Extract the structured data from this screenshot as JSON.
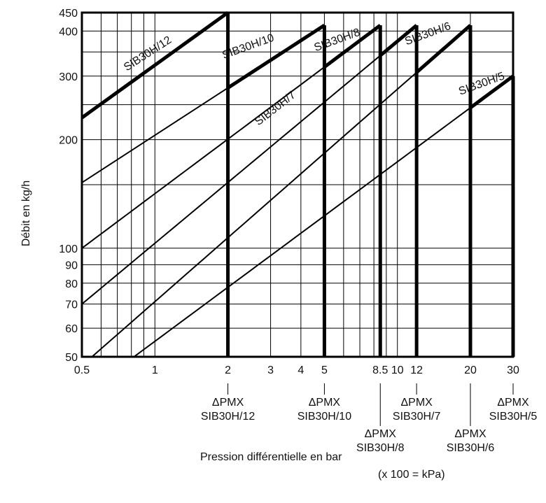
{
  "chart_data": {
    "type": "line",
    "title": "",
    "xlabel": "Pression différentielle en bar",
    "xunit": "(x 100 = kPa)",
    "ylabel": "Débit en kg/h",
    "x_scale": "log",
    "y_scale": "log",
    "xlim": [
      0.5,
      30
    ],
    "ylim": [
      50,
      450
    ],
    "grid": true,
    "x_ticks": [
      "0.5",
      "1",
      "2",
      "3",
      "4",
      "5",
      "8.5",
      "10",
      "12",
      "20",
      "30"
    ],
    "x_tick_values": [
      0.5,
      1,
      2,
      3,
      4,
      5,
      8.5,
      10,
      12,
      20,
      30
    ],
    "y_ticks": [
      "50",
      "60",
      "70",
      "80",
      "90",
      "100",
      "200",
      "300",
      "400",
      "450"
    ],
    "y_tick_values": [
      50,
      60,
      70,
      80,
      90,
      100,
      200,
      300,
      400,
      450
    ],
    "series": [
      {
        "name": "SIB30H/12",
        "x": [
          0.5,
          2
        ],
        "y": [
          230,
          450
        ],
        "dpmx": 2,
        "dpmx_label": [
          "ΔPMX",
          "SIB30H/12"
        ],
        "end_drop": 296
      },
      {
        "name": "SIB30H/10",
        "x": [
          0.5,
          5
        ],
        "y": [
          152,
          415
        ],
        "dpmx": 5,
        "dpmx_label": [
          "ΔPMX",
          "SIB30H/10"
        ],
        "end_drop": null
      },
      {
        "name": "SIB30H/8",
        "x": [
          0.5,
          8.5
        ],
        "y": [
          100,
          415
        ],
        "dpmx": 8.5,
        "dpmx_label": [
          "ΔPMX",
          "SIB30H/8"
        ],
        "end_drop": null
      },
      {
        "name": "SIB30H/7",
        "x": [
          0.5,
          12
        ],
        "y": [
          70,
          415
        ],
        "dpmx": 12,
        "dpmx_label": [
          "ΔPMX",
          "SIB30H/7"
        ],
        "end_drop": 390
      },
      {
        "name": "SIB30H/6",
        "x": [
          0.55,
          20
        ],
        "y": [
          50,
          415
        ],
        "dpmx": 20,
        "dpmx_label": [
          "ΔPMX",
          "SIB30H/6"
        ],
        "end_drop": 296
      },
      {
        "name": "SIB30H/5",
        "x": [
          0.82,
          30
        ],
        "y": [
          50,
          300
        ],
        "dpmx": 30,
        "dpmx_label": [
          "ΔPMX",
          "SIB30H/5"
        ],
        "end_drop": null
      }
    ]
  }
}
